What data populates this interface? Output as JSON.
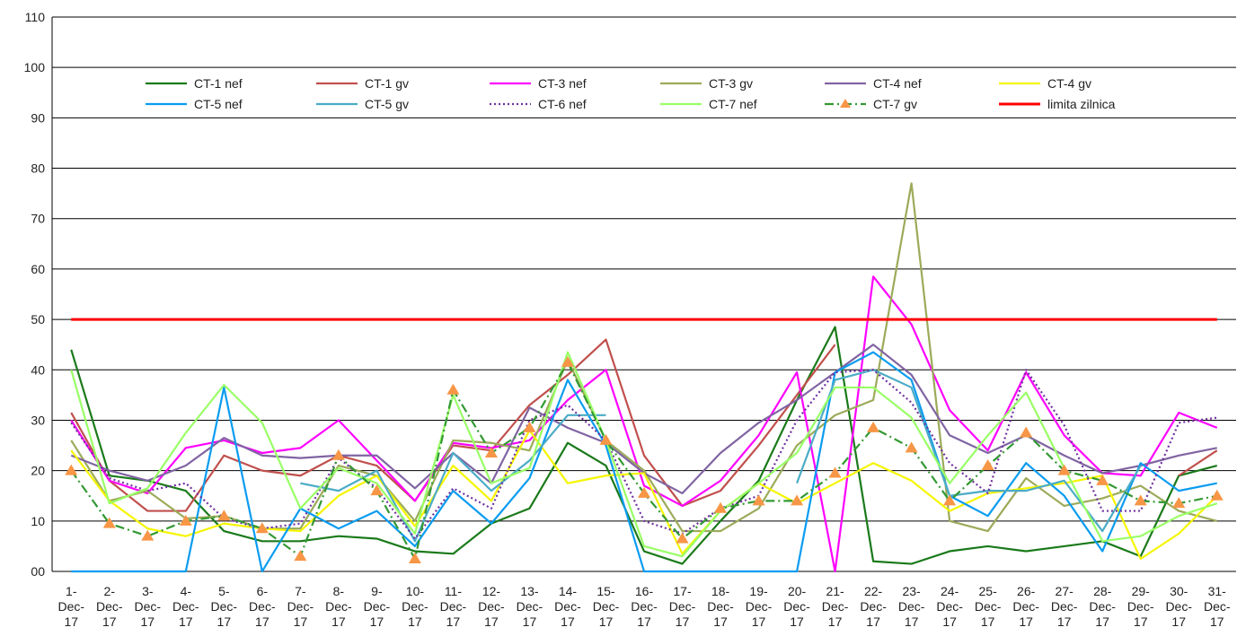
{
  "chart_data": {
    "type": "line",
    "categories": [
      "1-Dec-17",
      "2-Dec-17",
      "3-Dec-17",
      "4-Dec-17",
      "5-Dec-17",
      "6-Dec-17",
      "7-Dec-17",
      "8-Dec-17",
      "9-Dec-17",
      "10-Dec-17",
      "11-Dec-17",
      "12-Dec-17",
      "13-Dec-17",
      "14-Dec-17",
      "15-Dec-17",
      "16-Dec-17",
      "17-Dec-17",
      "18-Dec-17",
      "19-Dec-17",
      "20-Dec-17",
      "21-Dec-17",
      "22-Dec-17",
      "23-Dec-17",
      "24-Dec-17",
      "25-Dec-17",
      "26-Dec-17",
      "27-Dec-17",
      "28-Dec-17",
      "29-Dec-17",
      "30-Dec-17",
      "31-Dec-17"
    ],
    "ylim": [
      0,
      110
    ],
    "yticks": [
      {
        "value": 0,
        "label": "00"
      },
      10,
      20,
      30,
      40,
      50,
      60,
      70,
      80,
      90,
      100,
      110
    ],
    "grid": true,
    "legend": "top",
    "series": [
      {
        "name": "CT-1 nef",
        "color": "#1a7a1a",
        "values": [
          44,
          19,
          18,
          16,
          8,
          6,
          6,
          7,
          6.5,
          4,
          3.5,
          9.5,
          12.5,
          25.5,
          21,
          4,
          1.5,
          10,
          18,
          34,
          48.5,
          2,
          1.5,
          4,
          5,
          4,
          5,
          6,
          3,
          19,
          21
        ]
      },
      {
        "name": "CT-1 gv",
        "color": "#c0504d",
        "values": [
          31.5,
          18,
          12,
          12,
          23,
          20,
          19,
          23,
          21,
          14,
          25,
          24,
          33,
          39,
          46,
          23,
          13,
          16,
          25,
          35,
          45,
          null,
          null,
          null,
          null,
          null,
          null,
          null,
          null,
          19,
          24
        ]
      },
      {
        "name": "CT-3 nef",
        "color": "#ff00ff",
        "values": [
          30,
          18,
          15.5,
          24.5,
          26,
          23.5,
          24.5,
          30,
          22,
          14,
          25.5,
          24.5,
          26,
          34,
          40,
          17,
          13,
          18,
          27,
          39.5,
          0,
          58.5,
          49,
          32,
          24,
          39.5,
          27,
          19.5,
          19,
          31.5,
          28.5
        ]
      },
      {
        "name": "CT-3 gv",
        "color": "#9bab59",
        "values": [
          26,
          14,
          16,
          10.5,
          11,
          8.5,
          8.5,
          21,
          19,
          10,
          26,
          25.5,
          24,
          42,
          26,
          20,
          8,
          8,
          12.5,
          25,
          31,
          34,
          77,
          10,
          8,
          18.5,
          13,
          14.5,
          17,
          12,
          10
        ]
      },
      {
        "name": "CT-4 nef",
        "color": "#8064a2",
        "values": [
          23,
          20,
          18,
          21,
          26.5,
          23,
          22.5,
          23,
          23,
          16.5,
          23.5,
          17.5,
          32.5,
          28.5,
          25.5,
          19.5,
          15.5,
          23.5,
          29.5,
          34,
          39.5,
          45,
          39,
          27,
          23.5,
          27,
          23,
          19.5,
          21,
          23,
          24.5
        ]
      },
      {
        "name": "CT-4 gv",
        "color": "#f5f500",
        "values": [
          24,
          14,
          8.5,
          7,
          9.5,
          8.5,
          8,
          15,
          19,
          9,
          21,
          14,
          28,
          17.5,
          19,
          19.5,
          3.5,
          12,
          17.5,
          13.5,
          17.5,
          21.5,
          18,
          12,
          15.5,
          16.5,
          17.5,
          19,
          2.5,
          7.5,
          15
        ]
      },
      {
        "name": "CT-5 nef",
        "color": "#0a9cf0",
        "values": [
          0,
          0,
          0,
          0,
          36.5,
          0,
          12.5,
          8.5,
          12,
          5,
          16,
          9.5,
          18.5,
          38,
          25,
          0,
          0,
          0,
          0,
          0,
          39.5,
          43.5,
          38,
          15,
          11,
          21.5,
          15,
          4,
          21.5,
          16,
          17.5
        ]
      },
      {
        "name": "CT-5 gv",
        "color": "#4bacc6",
        "values": [
          null,
          null,
          null,
          null,
          null,
          null,
          17.5,
          16,
          20,
          6,
          23.5,
          16,
          22,
          31,
          31,
          null,
          null,
          null,
          null,
          17.5,
          38,
          40,
          36.5,
          15,
          16,
          16,
          18,
          8,
          21,
          null,
          14.5
        ]
      },
      {
        "name": "CT-6 nef",
        "color": "#7030a0",
        "dash": "dotted",
        "values": [
          29.5,
          18.5,
          16,
          17.5,
          10.5,
          8.5,
          9.5,
          22.5,
          16.5,
          6.5,
          16.5,
          12.5,
          30,
          33,
          26,
          10,
          7.5,
          12.5,
          15,
          30,
          39.5,
          40,
          33.5,
          21.5,
          15.5,
          40,
          29,
          12,
          12,
          29.5,
          30.5
        ]
      },
      {
        "name": "CT-7 nef",
        "color": "#99ff66",
        "values": [
          40,
          13.5,
          16.5,
          27.5,
          37,
          29.5,
          12.5,
          20.5,
          17.5,
          7.5,
          35,
          17.5,
          20.5,
          43.5,
          26,
          5,
          3,
          12,
          17.5,
          23.5,
          36.5,
          36.5,
          30.5,
          17.5,
          27,
          35.5,
          20.5,
          6,
          7,
          11,
          13.5
        ]
      },
      {
        "name": "CT-7 gv",
        "color": "#339933",
        "dash": "dash-dot",
        "marker": "triangle",
        "marker_color": "#f79646",
        "values": [
          20,
          9.5,
          7,
          10,
          11,
          8.5,
          3,
          23,
          16,
          2.5,
          36,
          23.5,
          28.5,
          41.5,
          26,
          15.5,
          6.5,
          12.5,
          14,
          14,
          19.5,
          28.5,
          24.5,
          14,
          21,
          27.5,
          20,
          18,
          14,
          13.5,
          15
        ]
      },
      {
        "name": "limita zilnica",
        "color": "#ff0000",
        "line_width": 3,
        "values": [
          50,
          50,
          50,
          50,
          50,
          50,
          50,
          50,
          50,
          50,
          50,
          50,
          50,
          50,
          50,
          50,
          50,
          50,
          50,
          50,
          50,
          50,
          50,
          50,
          50,
          50,
          50,
          50,
          50,
          50,
          50
        ]
      }
    ]
  }
}
